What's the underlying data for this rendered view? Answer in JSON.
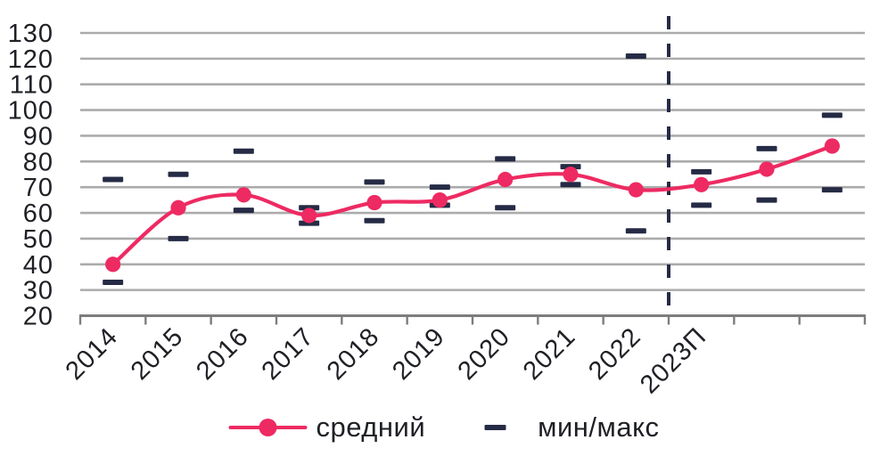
{
  "chart_data": {
    "type": "line",
    "title": "",
    "categories": [
      "2014",
      "2015",
      "2016",
      "2017",
      "2018",
      "2019",
      "2020",
      "2021",
      "2022",
      "2023П",
      "",
      ""
    ],
    "series": [
      {
        "name": "средний",
        "type": "line+markers",
        "values": [
          40,
          62,
          67,
          59,
          64,
          65,
          73,
          75,
          69,
          71,
          77,
          86
        ]
      },
      {
        "name": "мин/макс",
        "type": "minmax-dashes",
        "min": [
          33,
          50,
          61,
          56,
          57,
          63,
          62,
          71,
          53,
          63,
          65,
          69
        ],
        "max": [
          73,
          75,
          84,
          62,
          72,
          70,
          81,
          78,
          121,
          76,
          85,
          98
        ]
      }
    ],
    "ylim": [
      20,
      130
    ],
    "ytick_step": 10,
    "yticks": [
      130,
      120,
      110,
      100,
      90,
      80,
      70,
      60,
      50,
      40,
      30,
      20
    ],
    "grid": "horizontal",
    "legend_position": "bottom-center",
    "forecast_divider_after_index": 8,
    "colors": {
      "average_line": "#ee2a62",
      "minmax_dash": "#262b45",
      "divider": "#262b45",
      "gridline": "#ababab",
      "axis": "#7d7d7d",
      "text": "#1e2025",
      "background": "#ffffff"
    }
  }
}
